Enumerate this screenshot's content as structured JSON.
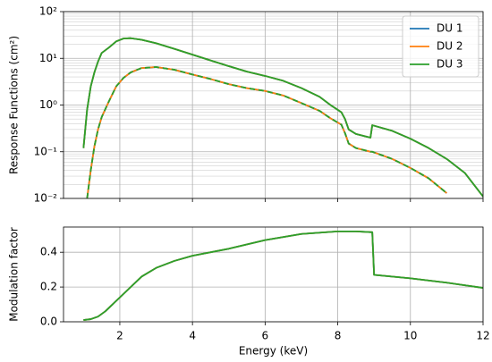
{
  "chart_data": [
    {
      "type": "line",
      "ylabel": "Response Functions (cm²)",
      "log_y": true,
      "grid": true,
      "minor_grid": true,
      "legend": "upper right",
      "xlim": [
        0.45,
        12
      ],
      "xticks": [
        2,
        4,
        6,
        8,
        10,
        12
      ],
      "ylim": [
        0.01,
        100
      ],
      "yticks": [
        {
          "value": 0.01,
          "label": "10⁻²"
        },
        {
          "value": 0.1,
          "label": "10⁻¹"
        },
        {
          "value": 1,
          "label": "10⁰"
        },
        {
          "value": 10,
          "label": "10¹"
        },
        {
          "value": 100,
          "label": "10²"
        }
      ],
      "yminorticks": [
        0.02,
        0.03,
        0.04,
        0.05,
        0.06,
        0.07,
        0.08,
        0.09,
        0.2,
        0.3,
        0.4,
        0.5,
        0.6,
        0.7,
        0.8,
        0.9,
        2,
        3,
        4,
        5,
        6,
        7,
        8,
        9,
        20,
        30,
        40,
        50,
        60,
        70,
        80,
        90
      ],
      "x": [
        1.0,
        1.1,
        1.2,
        1.3,
        1.4,
        1.5,
        1.7,
        1.9,
        2.1,
        2.3,
        2.6,
        3.0,
        3.5,
        4.0,
        4.5,
        5.0,
        5.5,
        6.0,
        6.5,
        7.0,
        7.5,
        7.8,
        8.1,
        8.2,
        8.3,
        8.5,
        8.9,
        8.95,
        9.5,
        10.0,
        10.5,
        11.0,
        11.5,
        12.0
      ],
      "series": [
        {
          "name": "DU 1",
          "color": "#1f77b4",
          "values": [
            0.12,
            0.8,
            2.5,
            5,
            8.5,
            13,
            17,
            23,
            26.5,
            27,
            25,
            21,
            16,
            12,
            9,
            6.8,
            5.2,
            4.2,
            3.3,
            2.3,
            1.5,
            1.0,
            0.7,
            0.5,
            0.3,
            0.24,
            0.2,
            0.37,
            0.28,
            0.19,
            0.12,
            0.07,
            0.035,
            0.011
          ]
        },
        {
          "name": "DU 2",
          "color": "#ff7f0e",
          "values": [
            0.12,
            0.8,
            2.5,
            5,
            8.5,
            13,
            17,
            23,
            26.5,
            27,
            25,
            21,
            16,
            12,
            9,
            6.8,
            5.2,
            4.2,
            3.3,
            2.3,
            1.5,
            1.0,
            0.7,
            0.5,
            0.3,
            0.24,
            0.2,
            0.37,
            0.28,
            0.19,
            0.12,
            0.07,
            0.035,
            0.011
          ]
        },
        {
          "name": "DU 3",
          "color": "#2ca02c",
          "values": [
            0.12,
            0.8,
            2.5,
            5,
            8.5,
            13,
            17,
            23,
            26.5,
            27,
            25,
            21,
            16,
            12,
            9,
            6.8,
            5.2,
            4.2,
            3.3,
            2.3,
            1.5,
            1.0,
            0.7,
            0.5,
            0.3,
            0.24,
            0.2,
            0.37,
            0.28,
            0.19,
            0.12,
            0.07,
            0.035,
            0.011
          ]
        },
        {
          "color": "#1f77b4",
          "values": [
            null,
            0.01,
            0.04,
            0.13,
            0.3,
            0.55,
            1.2,
            2.5,
            3.8,
            5.0,
            6.2,
            6.5,
            5.7,
            4.5,
            3.6,
            2.8,
            2.3,
            2.0,
            1.6,
            1.1,
            0.75,
            0.52,
            0.38,
            0.25,
            0.15,
            0.12,
            0.1,
            0.1,
            0.07,
            0.045,
            0.027,
            0.013,
            null,
            null
          ]
        },
        {
          "color": "#ff7f0e",
          "values": [
            null,
            0.01,
            0.04,
            0.13,
            0.3,
            0.55,
            1.2,
            2.5,
            3.8,
            5.0,
            6.2,
            6.5,
            5.7,
            4.5,
            3.6,
            2.8,
            2.3,
            2.0,
            1.6,
            1.1,
            0.75,
            0.52,
            0.38,
            0.25,
            0.15,
            0.12,
            0.1,
            0.1,
            0.07,
            0.045,
            0.027,
            0.013,
            null,
            null
          ]
        },
        {
          "color": "#2ca02c",
          "linestyle": "dashed",
          "values": [
            null,
            0.01,
            0.04,
            0.13,
            0.3,
            0.55,
            1.2,
            2.5,
            3.8,
            5.0,
            6.2,
            6.5,
            5.7,
            4.5,
            3.6,
            2.8,
            2.3,
            2.0,
            1.6,
            1.1,
            0.75,
            0.52,
            0.38,
            0.25,
            0.15,
            0.12,
            0.1,
            0.1,
            0.07,
            0.045,
            0.027,
            0.013,
            null,
            null
          ]
        }
      ]
    },
    {
      "type": "line",
      "xlabel": "Energy (keV)",
      "ylabel": "Modulation factor",
      "grid": true,
      "xlim": [
        0.45,
        12
      ],
      "xticks": [
        2,
        4,
        6,
        8,
        10,
        12
      ],
      "ylim": [
        0,
        0.545
      ],
      "yticks": [
        {
          "value": 0,
          "label": "0.0"
        },
        {
          "value": 0.2,
          "label": "0.2"
        },
        {
          "value": 0.4,
          "label": "0.4"
        }
      ],
      "x": [
        1.0,
        1.2,
        1.4,
        1.6,
        1.8,
        2.0,
        2.3,
        2.6,
        3.0,
        3.5,
        4.0,
        5.0,
        6.0,
        7.0,
        8.0,
        8.5,
        8.95,
        9.0,
        10.0,
        11.0,
        12.0
      ],
      "series": [
        {
          "color": "#1f77b4",
          "values": [
            0.01,
            0.015,
            0.03,
            0.06,
            0.1,
            0.14,
            0.2,
            0.26,
            0.31,
            0.35,
            0.38,
            0.42,
            0.47,
            0.505,
            0.52,
            0.52,
            0.515,
            0.27,
            0.25,
            0.225,
            0.195
          ]
        },
        {
          "color": "#ff7f0e",
          "values": [
            0.01,
            0.015,
            0.03,
            0.06,
            0.1,
            0.14,
            0.2,
            0.26,
            0.31,
            0.35,
            0.38,
            0.42,
            0.47,
            0.505,
            0.52,
            0.52,
            0.515,
            0.27,
            0.25,
            0.225,
            0.195
          ]
        },
        {
          "color": "#2ca02c",
          "values": [
            0.01,
            0.015,
            0.03,
            0.06,
            0.1,
            0.14,
            0.2,
            0.26,
            0.31,
            0.35,
            0.38,
            0.42,
            0.47,
            0.505,
            0.52,
            0.52,
            0.515,
            0.27,
            0.25,
            0.225,
            0.195
          ]
        }
      ]
    }
  ]
}
